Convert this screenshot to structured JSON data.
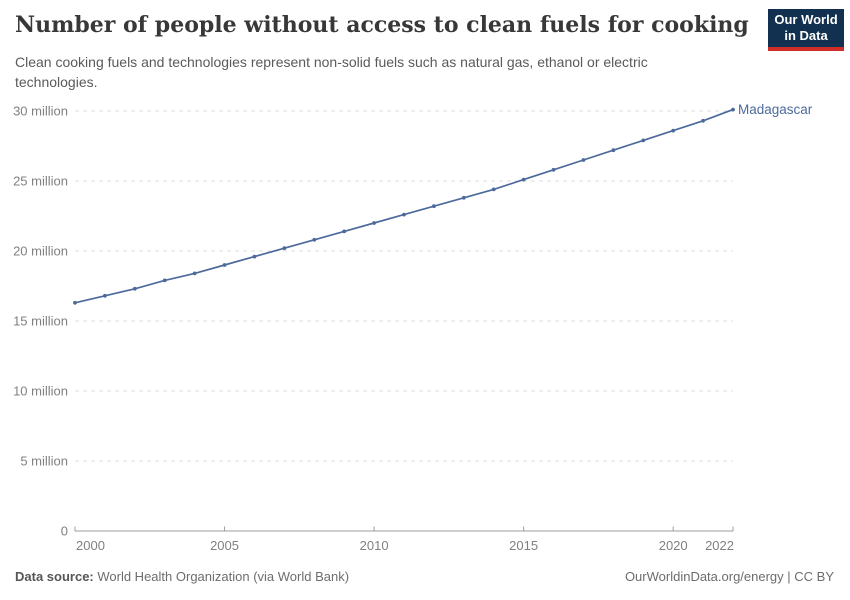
{
  "header": {
    "title": "Number of people without access to clean fuels for cooking",
    "subtitle": "Clean cooking fuels and technologies represent non-solid fuels such as natural gas, ethanol or electric technologies.",
    "logo": {
      "line1": "Our World",
      "line2": "in Data",
      "bg_color": "#12304f",
      "accent_color": "#cf2d27"
    }
  },
  "footer": {
    "source_label": "Data source:",
    "source_value": " World Health Organization (via World Bank)",
    "credit": "OurWorldinData.org/energy | CC BY"
  },
  "chart_data": {
    "type": "line",
    "title": "Number of people without access to clean fuels for cooking",
    "xlabel": "",
    "ylabel": "",
    "xlim": [
      2000,
      2022
    ],
    "ylim": [
      0,
      30
    ],
    "grid": "horizontal-dashed",
    "legend_position": "end-of-line-label",
    "x": [
      2000,
      2001,
      2002,
      2003,
      2004,
      2005,
      2006,
      2007,
      2008,
      2009,
      2010,
      2011,
      2012,
      2013,
      2014,
      2015,
      2016,
      2017,
      2018,
      2019,
      2020,
      2021,
      2022
    ],
    "series": [
      {
        "name": "Madagascar",
        "color": "#4c6a9c",
        "unit": "million",
        "values": [
          16.3,
          16.8,
          17.3,
          17.9,
          18.4,
          19.0,
          19.6,
          20.2,
          20.8,
          21.4,
          22.0,
          22.6,
          23.2,
          23.8,
          24.4,
          25.1,
          25.8,
          26.5,
          27.2,
          27.9,
          28.6,
          29.3,
          30.1
        ]
      }
    ],
    "x_ticks": [
      2000,
      2005,
      2010,
      2015,
      2020,
      2022
    ],
    "y_ticks": [
      {
        "v": 0,
        "label": "0"
      },
      {
        "v": 5,
        "label": "5 million"
      },
      {
        "v": 10,
        "label": "10 million"
      },
      {
        "v": 15,
        "label": "15 million"
      },
      {
        "v": 20,
        "label": "20 million"
      },
      {
        "v": 25,
        "label": "25 million"
      },
      {
        "v": 30,
        "label": "30 million"
      }
    ],
    "colors": {
      "grid": "#dedede",
      "axis": "#9e9e9e",
      "axis_text": "#808080"
    }
  }
}
